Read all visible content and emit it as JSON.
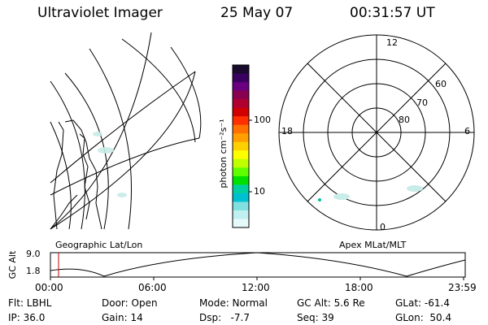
{
  "header": {
    "instrument": "Ultraviolet Imager",
    "date": "25 May 07",
    "time": "00:31:57 UT"
  },
  "geo_panel": {
    "label": "Geographic Lat/Lon"
  },
  "colorbar": {
    "unit_label": "photon cm⁻²s⁻¹",
    "ticks": [
      "100",
      "10"
    ],
    "colors": [
      "#1a0a2e",
      "#3a0060",
      "#6a0080",
      "#8a0050",
      "#b00030",
      "#d00000",
      "#ff3000",
      "#ff7000",
      "#ffa000",
      "#ffd000",
      "#ffff00",
      "#c0ff00",
      "#60ff00",
      "#00e000",
      "#00d0a0",
      "#00c0d0",
      "#80e0e0",
      "#c0f0f0",
      "#e6fafa"
    ]
  },
  "polar": {
    "clock_labels": [
      "12",
      "18",
      "6",
      "0"
    ],
    "lat_labels": [
      "60",
      "70",
      "80"
    ],
    "label": "Apex MLat/MLT"
  },
  "altitude_strip": {
    "axis_title": "GC Alt",
    "ticks": [
      "9.0",
      "1.8"
    ],
    "time_ticks": [
      "00:00",
      "06:00",
      "12:00",
      "18:00",
      "23:59"
    ]
  },
  "status": {
    "rows": [
      [
        "Flt: LBHL",
        "Door: Open",
        "Mode: Normal",
        "GC Alt: 5.6 Re",
        "GLat: -61.4"
      ],
      [
        "IP: 36.0",
        "Gain: 14",
        "Dsp:   -7.7",
        "Seq: 39",
        "GLon:  50.4"
      ]
    ]
  }
}
